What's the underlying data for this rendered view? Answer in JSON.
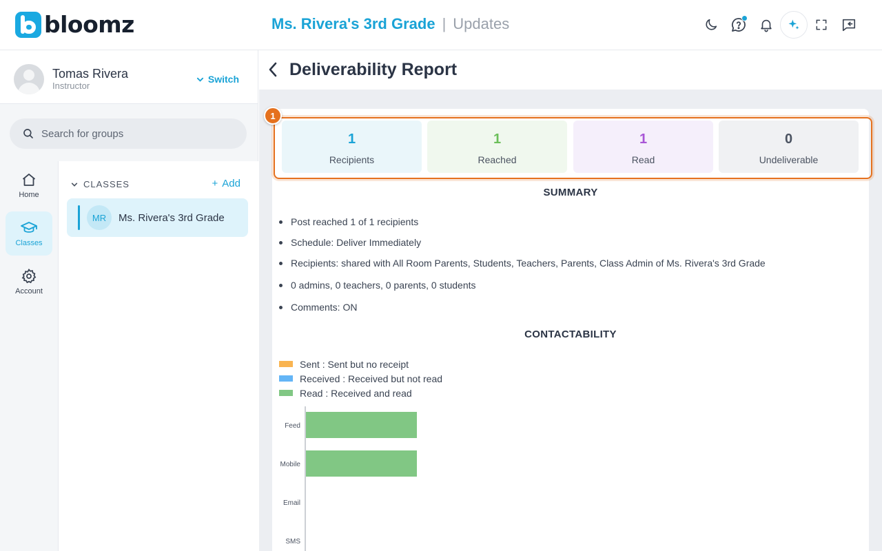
{
  "app": {
    "logo_text": "bloomz",
    "group_title": "Ms. Rivera's 3rd Grade",
    "separator": "|",
    "section_title": "Updates",
    "top_icons": [
      "moon-icon",
      "help-bubble-icon",
      "bell-icon",
      "sparkle-icon",
      "fullscreen-icon",
      "chat-collapse-icon"
    ]
  },
  "profile": {
    "name": "Tomas Rivera",
    "role": "Instructor",
    "switch_label": "Switch"
  },
  "search": {
    "placeholder": "Search for groups"
  },
  "nav": {
    "items": [
      {
        "label": "Home",
        "icon": "home-icon"
      },
      {
        "label": "Classes",
        "icon": "graduation-cap-icon",
        "active": true
      },
      {
        "label": "Account",
        "icon": "gear-icon"
      }
    ]
  },
  "groups": {
    "header": "CLASSES",
    "add_label": "Add",
    "items": [
      {
        "initials": "MR",
        "name": "Ms. Rivera's 3rd Grade"
      }
    ]
  },
  "report": {
    "title": "Deliverability Report",
    "badge": "1",
    "stats": [
      {
        "value": "1",
        "label": "Recipients",
        "color": "#1aa3d6",
        "bg": "#eaf6fa"
      },
      {
        "value": "1",
        "label": "Reached",
        "color": "#6bbf59",
        "bg": "#f0f8ee"
      },
      {
        "value": "1",
        "label": "Read",
        "color": "#a855d6",
        "bg": "#f5effb"
      },
      {
        "value": "0",
        "label": "Undeliverable",
        "color": "#4b5361",
        "bg": "#f0f1f3"
      }
    ],
    "summary_title": "SUMMARY",
    "summary": [
      "Post reached 1 of 1 recipients",
      "Schedule: Deliver Immediately",
      "Recipients: shared with All Room Parents, Students, Teachers, Parents, Class Admin of Ms. Rivera's 3rd Grade",
      "0 admins, 0 teachers, 0 parents, 0 students",
      "Comments: ON"
    ],
    "contact_title": "CONTACTABILITY",
    "legend": [
      {
        "label": "Sent : Sent but no receipt",
        "color": "#f9b451"
      },
      {
        "label": "Received : Received but not read",
        "color": "#64b5f6"
      },
      {
        "label": "Read : Received and read",
        "color": "#81c784"
      }
    ]
  },
  "chart_data": {
    "type": "bar",
    "orientation": "horizontal",
    "categories": [
      "Feed",
      "Mobile",
      "Email",
      "SMS"
    ],
    "series": [
      {
        "name": "Sent : Sent but no receipt",
        "values": [
          0,
          0,
          0,
          0
        ],
        "color": "#f9b451"
      },
      {
        "name": "Received : Received but not read",
        "values": [
          0,
          0,
          0,
          0
        ],
        "color": "#64b5f6"
      },
      {
        "name": "Read : Received and read",
        "values": [
          1,
          1,
          0,
          0
        ],
        "color": "#81c784"
      }
    ],
    "xlim": [
      0,
      5
    ],
    "stacked": true,
    "legend_position": "top-left",
    "grid": false
  }
}
